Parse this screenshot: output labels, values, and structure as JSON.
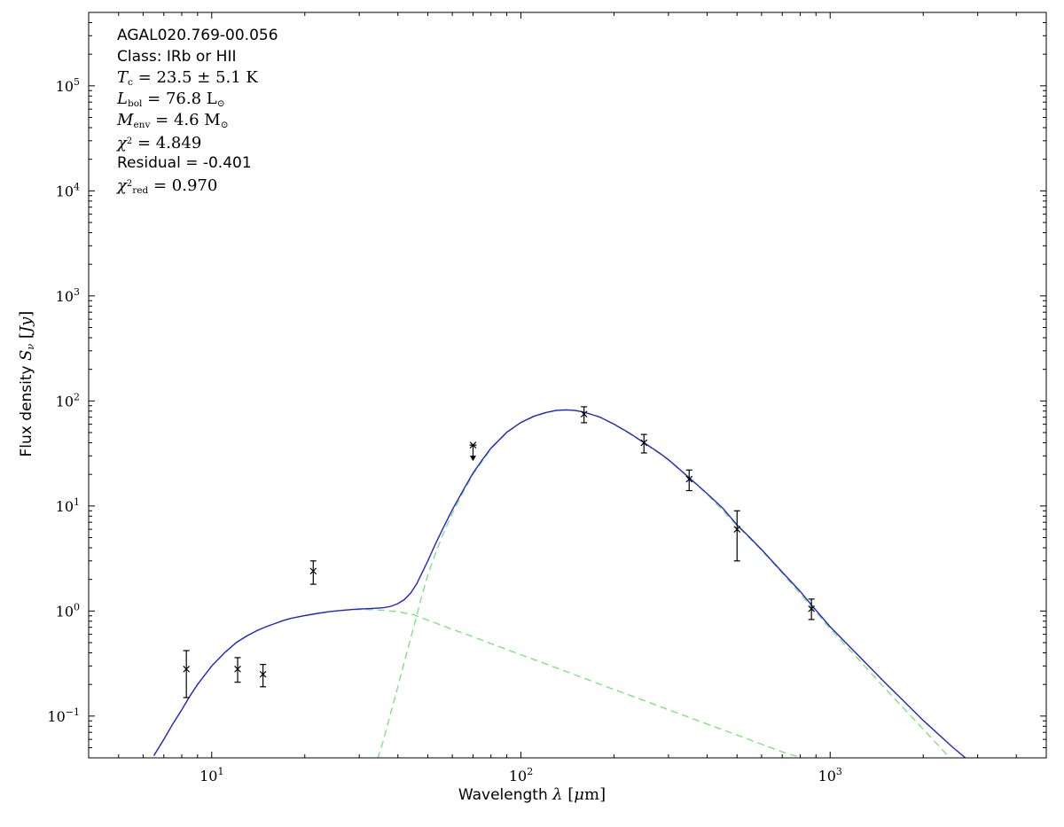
{
  "figure": {
    "background": "#ffffff"
  },
  "chart_data": {
    "type": "line",
    "title": "",
    "x_scale": "log",
    "y_scale": "log",
    "xlim": [
      4,
      5000
    ],
    "ylim": [
      0.04,
      500000
    ],
    "x_major_ticks": [
      10,
      100,
      1000
    ],
    "y_major_ticks": [
      0.1,
      1,
      10,
      100,
      1000,
      10000,
      100000
    ],
    "xlabel_parts": [
      {
        "t": "Wavelength ",
        "f": "sans"
      },
      {
        "t": "λ",
        "f": "serif",
        "i": 1
      },
      {
        "t": " [",
        "f": "serif"
      },
      {
        "t": "μ",
        "f": "serif",
        "i": 1
      },
      {
        "t": "m",
        "f": "serif"
      },
      {
        "t": "]",
        "f": "serif"
      }
    ],
    "ylabel_parts": [
      {
        "t": "Flux density ",
        "f": "sans"
      },
      {
        "t": "S",
        "f": "serif",
        "i": 1
      },
      {
        "t": "ν",
        "f": "serif",
        "i": 1,
        "sub": 1
      },
      {
        "t": " [",
        "f": "serif"
      },
      {
        "t": "Jy",
        "f": "serif",
        "i": 1
      },
      {
        "t": "]",
        "f": "serif"
      }
    ],
    "annotations": [
      {
        "font": "sans",
        "parts": [
          {
            "t": "AGAL020.769-00.056"
          }
        ]
      },
      {
        "font": "sans",
        "parts": [
          {
            "t": "Class: IRb or HII"
          }
        ]
      },
      {
        "font": "serif",
        "parts": [
          {
            "t": "T",
            "i": 1
          },
          {
            "t": "c",
            "sub": 1
          },
          {
            "t": " = 23.5 ± 5.1 K"
          }
        ]
      },
      {
        "font": "serif",
        "parts": [
          {
            "t": "L",
            "i": 1
          },
          {
            "t": "bol",
            "sub": 1
          },
          {
            "t": " = 76.8 L"
          },
          {
            "t": "⊙",
            "sub": 1
          }
        ]
      },
      {
        "font": "serif",
        "parts": [
          {
            "t": "M",
            "i": 1
          },
          {
            "t": "env",
            "sub": 1
          },
          {
            "t": " = 4.6 M"
          },
          {
            "t": "⊙",
            "sub": 1
          }
        ]
      },
      {
        "font": "serif",
        "parts": [
          {
            "t": "χ",
            "i": 1
          },
          {
            "t": "2",
            "sup": 1
          },
          {
            "t": " = 4.849"
          }
        ]
      },
      {
        "font": "sans",
        "parts": [
          {
            "t": "Residual = -0.401"
          }
        ]
      },
      {
        "font": "serif",
        "parts": [
          {
            "t": "χ",
            "i": 1
          },
          {
            "t": "2",
            "sup": 1
          },
          {
            "t": "red",
            "sub": 1
          },
          {
            "t": " = 0.970"
          }
        ]
      }
    ],
    "colors": {
      "model_total": "#2424cc",
      "model_component": "#7de37d",
      "data_points": "#000000",
      "axes": "#000000"
    },
    "series": [
      {
        "name": "warm-component-model",
        "style": "dashed",
        "color_key": "model_component",
        "points": [
          [
            6.5,
            0.042
          ],
          [
            7,
            0.06
          ],
          [
            7.5,
            0.085
          ],
          [
            8,
            0.115
          ],
          [
            8.5,
            0.155
          ],
          [
            9,
            0.2
          ],
          [
            10,
            0.3
          ],
          [
            11,
            0.4
          ],
          [
            12,
            0.5
          ],
          [
            13,
            0.58
          ],
          [
            14,
            0.65
          ],
          [
            15,
            0.71
          ],
          [
            16,
            0.76
          ],
          [
            17,
            0.81
          ],
          [
            18,
            0.85
          ],
          [
            20,
            0.905
          ],
          [
            22,
            0.95
          ],
          [
            24,
            0.985
          ],
          [
            26,
            1.01
          ],
          [
            28,
            1.025
          ],
          [
            30,
            1.035
          ],
          [
            33,
            1.03
          ],
          [
            36,
            1.015
          ],
          [
            40,
            0.985
          ],
          [
            45,
            0.92
          ],
          [
            50,
            0.82
          ],
          [
            60,
            0.67
          ],
          [
            70,
            0.57
          ],
          [
            80,
            0.49
          ],
          [
            100,
            0.384
          ],
          [
            120,
            0.315
          ],
          [
            150,
            0.246
          ],
          [
            200,
            0.179
          ],
          [
            250,
            0.141
          ],
          [
            300,
            0.115
          ],
          [
            400,
            0.084
          ],
          [
            500,
            0.066
          ],
          [
            600,
            0.054
          ],
          [
            700,
            0.0456
          ],
          [
            800,
            0.0405
          ],
          [
            900,
            0.0365
          ]
        ]
      },
      {
        "name": "cold-component-model",
        "style": "dashed",
        "color_key": "model_component",
        "points": [
          [
            31,
            0.015
          ],
          [
            32,
            0.02
          ],
          [
            34,
            0.035
          ],
          [
            36,
            0.06
          ],
          [
            38,
            0.11
          ],
          [
            40,
            0.19
          ],
          [
            42,
            0.33
          ],
          [
            44,
            0.55
          ],
          [
            46,
            0.9
          ],
          [
            48,
            1.45
          ],
          [
            50,
            2.2
          ],
          [
            53,
            3.6
          ],
          [
            56,
            5.4
          ],
          [
            60,
            8.5
          ],
          [
            65,
            13.5
          ],
          [
            70,
            20
          ],
          [
            80,
            35
          ],
          [
            90,
            50
          ],
          [
            100,
            62
          ],
          [
            110,
            71
          ],
          [
            120,
            77
          ],
          [
            130,
            81
          ],
          [
            140,
            82
          ],
          [
            150,
            81
          ],
          [
            160,
            78
          ],
          [
            180,
            70
          ],
          [
            200,
            60
          ],
          [
            250,
            40
          ],
          [
            300,
            27.5
          ],
          [
            350,
            18.5
          ],
          [
            400,
            13
          ],
          [
            500,
            6.5
          ],
          [
            600,
            3.8
          ],
          [
            700,
            2.3
          ],
          [
            870,
            1.1
          ],
          [
            1000,
            0.68
          ],
          [
            1200,
            0.38
          ],
          [
            1500,
            0.185
          ],
          [
            2000,
            0.075
          ],
          [
            2500,
            0.037
          ],
          [
            3000,
            0.021
          ]
        ]
      },
      {
        "name": "total-model",
        "style": "solid",
        "color_key": "model_total",
        "points": [
          [
            6.5,
            0.042
          ],
          [
            7,
            0.06
          ],
          [
            7.5,
            0.085
          ],
          [
            8,
            0.115
          ],
          [
            8.5,
            0.155
          ],
          [
            9,
            0.2
          ],
          [
            10,
            0.3
          ],
          [
            11,
            0.4
          ],
          [
            12,
            0.5
          ],
          [
            13,
            0.58
          ],
          [
            14,
            0.65
          ],
          [
            15,
            0.71
          ],
          [
            16,
            0.76
          ],
          [
            17,
            0.81
          ],
          [
            18,
            0.85
          ],
          [
            20,
            0.905
          ],
          [
            22,
            0.95
          ],
          [
            24,
            0.985
          ],
          [
            26,
            1.01
          ],
          [
            28,
            1.03
          ],
          [
            30,
            1.045
          ],
          [
            32,
            1.053
          ],
          [
            34,
            1.063
          ],
          [
            36,
            1.075
          ],
          [
            38,
            1.11
          ],
          [
            40,
            1.175
          ],
          [
            42,
            1.285
          ],
          [
            44,
            1.485
          ],
          [
            46,
            1.81
          ],
          [
            48,
            2.34
          ],
          [
            50,
            3.0
          ],
          [
            53,
            4.4
          ],
          [
            56,
            6.15
          ],
          [
            60,
            9.2
          ],
          [
            65,
            14.1
          ],
          [
            70,
            20.6
          ],
          [
            75,
            27.5
          ],
          [
            80,
            35.5
          ],
          [
            85,
            42.5
          ],
          [
            90,
            50.4
          ],
          [
            100,
            62.4
          ],
          [
            110,
            71.4
          ],
          [
            120,
            77.3
          ],
          [
            130,
            81.3
          ],
          [
            140,
            82.3
          ],
          [
            150,
            81.2
          ],
          [
            160,
            78.2
          ],
          [
            180,
            70.2
          ],
          [
            200,
            60.2
          ],
          [
            225,
            49.2
          ],
          [
            250,
            40.1
          ],
          [
            280,
            32.1
          ],
          [
            300,
            27.6
          ],
          [
            350,
            18.6
          ],
          [
            400,
            13.1
          ],
          [
            450,
            9.5
          ],
          [
            500,
            6.6
          ],
          [
            550,
            5.0
          ],
          [
            600,
            3.85
          ],
          [
            700,
            2.35
          ],
          [
            800,
            1.54
          ],
          [
            870,
            1.14
          ],
          [
            1000,
            0.71
          ],
          [
            1200,
            0.41
          ],
          [
            1500,
            0.21
          ],
          [
            2000,
            0.091
          ],
          [
            2500,
            0.05
          ],
          [
            3000,
            0.032
          ]
        ]
      }
    ],
    "data_points": [
      {
        "x": 8.28,
        "y": 0.28,
        "yerr_lo": 0.13,
        "yerr_hi": 0.14
      },
      {
        "x": 12.13,
        "y": 0.28,
        "yerr_lo": 0.07,
        "yerr_hi": 0.08
      },
      {
        "x": 14.65,
        "y": 0.25,
        "yerr_lo": 0.06,
        "yerr_hi": 0.06
      },
      {
        "x": 21.3,
        "y": 2.4,
        "yerr_lo": 0.6,
        "yerr_hi": 0.6
      },
      {
        "x": 70,
        "y": 38,
        "upper_limit": true
      },
      {
        "x": 160,
        "y": 75,
        "yerr_lo": 13,
        "yerr_hi": 13
      },
      {
        "x": 250,
        "y": 40,
        "yerr_lo": 8,
        "yerr_hi": 8
      },
      {
        "x": 350,
        "y": 18,
        "yerr_lo": 4,
        "yerr_hi": 4
      },
      {
        "x": 500,
        "y": 6,
        "yerr_lo": 3,
        "yerr_hi": 3
      },
      {
        "x": 870,
        "y": 1.05,
        "yerr_lo": 0.22,
        "yerr_hi": 0.25
      }
    ]
  }
}
